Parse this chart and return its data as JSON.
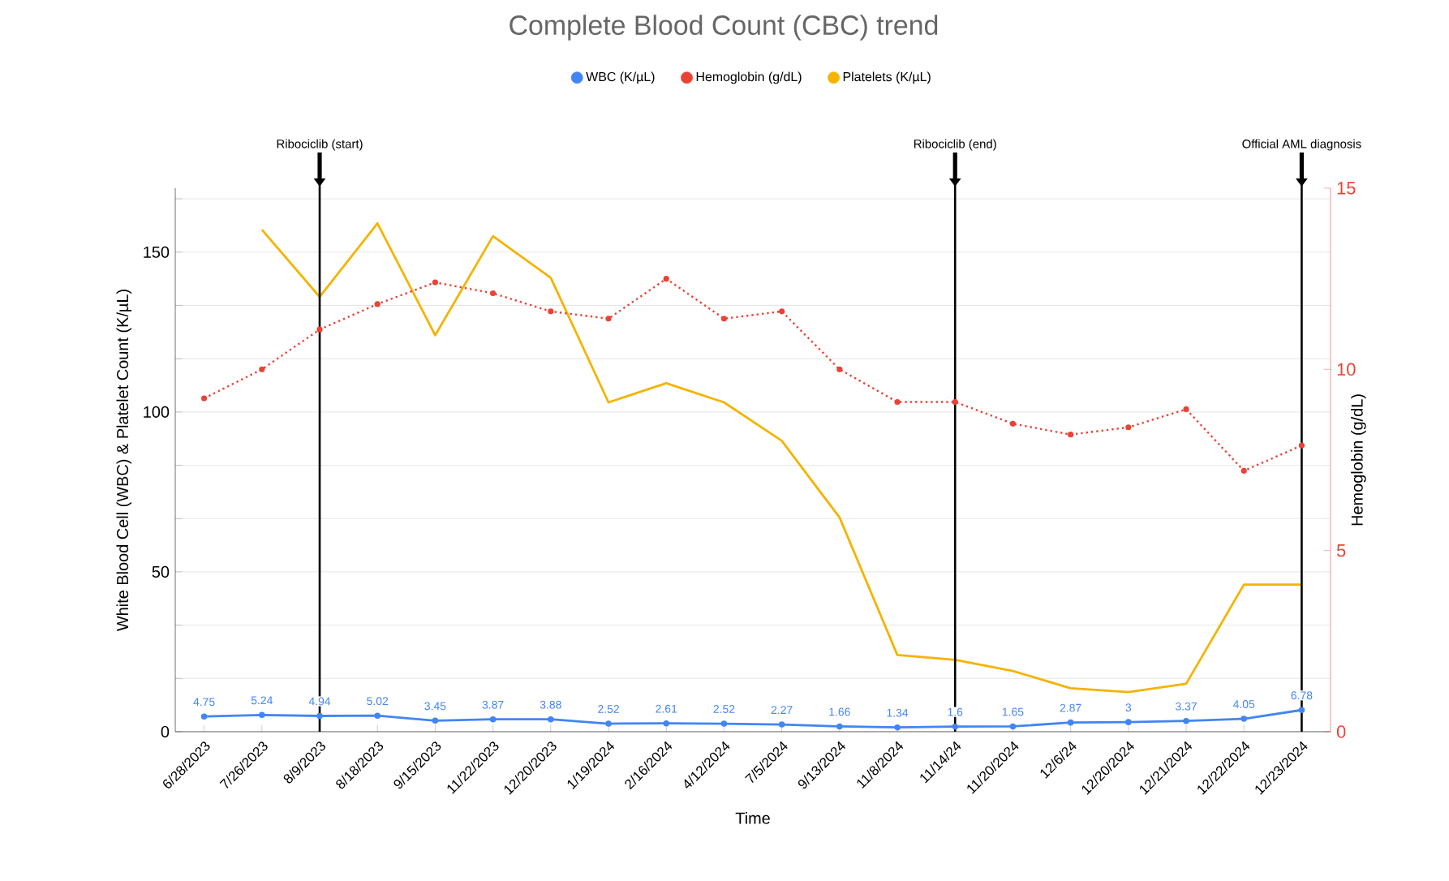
{
  "chart_data": {
    "type": "line",
    "title": "Complete Blood Count (CBC) trend",
    "xlabel": "Time",
    "ylabel": "White Blood Cell (WBC) & Platelet Count (K/µL)",
    "y2label": "Hemoglobin (g/dL)",
    "categories": [
      "6/28/2023",
      "7/26/2023",
      "8/9/2023",
      "8/18/2023",
      "9/15/2023",
      "11/22/2023",
      "12/20/2023",
      "1/19/2024",
      "2/16/2024",
      "4/12/2024",
      "7/5/2024",
      "9/13/2024",
      "11/8/2024",
      "11/14/24",
      "11/20/2024",
      "12/6/24",
      "12/20/2024",
      "12/21/2024",
      "12/22/2024",
      "12/23/2024"
    ],
    "series": [
      {
        "name": "WBC (K/µL)",
        "color": "#4285f4",
        "marker": "circle",
        "line_style": "solid",
        "data_labels": true,
        "values": [
          4.75,
          5.24,
          4.94,
          5.02,
          3.45,
          3.87,
          3.88,
          2.52,
          2.61,
          2.52,
          2.27,
          1.66,
          1.34,
          1.6,
          1.65,
          2.87,
          3,
          3.37,
          4.05,
          6.78
        ]
      },
      {
        "name": "Hemoglobin (g/dL)",
        "color": "#ea4335",
        "axis": "y2",
        "marker": "circle",
        "line_style": "dotted",
        "values": [
          9.2,
          10.0,
          11.1,
          11.8,
          12.4,
          12.1,
          11.6,
          11.4,
          12.5,
          11.4,
          11.6,
          10.0,
          9.1,
          9.1,
          8.5,
          8.2,
          8.4,
          8.9,
          7.2,
          7.9
        ]
      },
      {
        "name": "Platelets (K/µL)",
        "color": "#f4b400",
        "marker": "none",
        "line_style": "solid",
        "values": [
          null,
          157,
          136,
          159,
          124,
          155,
          142,
          103,
          109,
          103,
          91,
          67,
          24,
          22.5,
          19,
          13.6,
          12.4,
          15,
          46,
          46
        ]
      }
    ],
    "ylim": [
      0,
      170
    ],
    "yticks": [
      0,
      {
        "value": 16.67,
        "label": null
      },
      {
        "value": 33.33,
        "label": null
      },
      50,
      {
        "value": 66.67,
        "label": null
      },
      {
        "value": 83.33,
        "label": null
      },
      100,
      {
        "value": 116.67,
        "label": null
      },
      {
        "value": 133.33,
        "label": null
      },
      150,
      {
        "value": 166.67,
        "label": null
      }
    ],
    "y2lim": [
      0,
      15
    ],
    "y2ticks": [
      0,
      5,
      10,
      15
    ],
    "grid": "y",
    "legend": "top",
    "ref_lines": [
      {
        "axis": "x",
        "value": "8/9/2023",
        "label": "Ribociclib   (start)",
        "color": "#000000"
      },
      {
        "axis": "x",
        "value": "11/14/24",
        "label": "Ribociclib   (end)",
        "color": "#000000"
      },
      {
        "axis": "x",
        "value": "12/23/2024",
        "label": "Official AML diagnosis",
        "color": "#000000"
      }
    ]
  }
}
